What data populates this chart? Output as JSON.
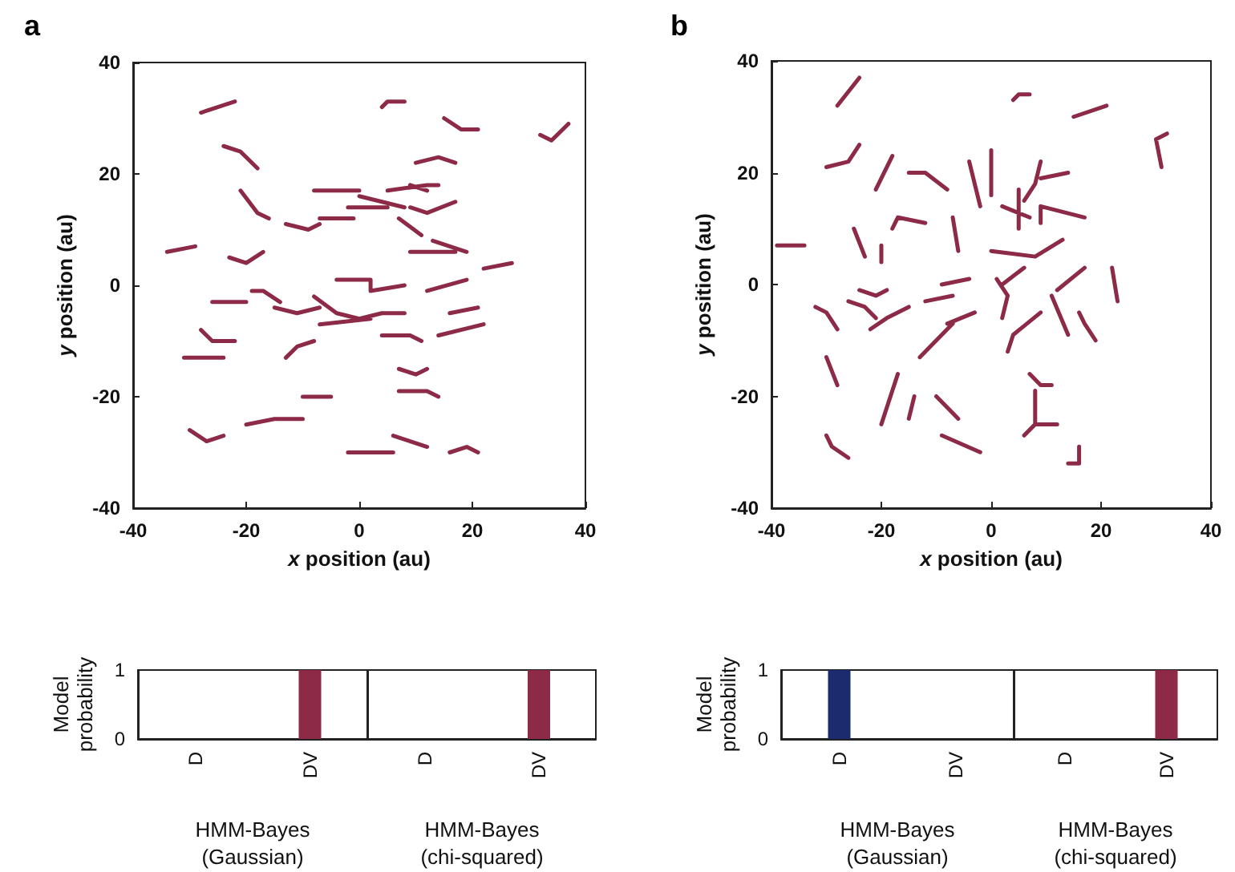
{
  "chart_data": [
    {
      "type": "line",
      "title": "a",
      "xlabel": "x position (au)",
      "ylabel": "y position (au)",
      "xlim": [
        -40,
        40
      ],
      "xticks": [
        -40,
        -20,
        0,
        20,
        40
      ],
      "ylim": [
        -40,
        40
      ],
      "yticks": [
        -40,
        -20,
        0,
        20,
        40
      ],
      "marker": "none",
      "line_style": "solid",
      "series": [
        {
          "color": "#8c2a48",
          "x": [
            -28,
            -22,
            null,
            4,
            5,
            8,
            null,
            15,
            18,
            21,
            null,
            32,
            34,
            37,
            null,
            -24,
            -21,
            -18,
            null,
            10,
            14,
            17,
            null,
            -8,
            -4,
            0,
            null,
            5,
            12,
            14,
            null,
            9,
            12,
            null,
            -2,
            5,
            null,
            0,
            4,
            8,
            null,
            9,
            12,
            17,
            null,
            -21,
            -18,
            -16,
            null,
            -7,
            -1,
            null,
            -13,
            -9,
            -7,
            null,
            7,
            11,
            null,
            -34,
            -29,
            null,
            -23,
            -20,
            -17,
            null,
            9,
            17,
            null,
            13,
            19,
            null,
            22,
            27,
            null,
            -4,
            2,
            2,
            8,
            null,
            12,
            19,
            null,
            -19,
            -17,
            -14,
            null,
            -26,
            -23,
            -20,
            null,
            -15,
            -11,
            -7,
            null,
            -8,
            -4,
            0,
            4,
            8,
            null,
            -7,
            2,
            null,
            16,
            21,
            null,
            14,
            22,
            null,
            4,
            9,
            11,
            null,
            -28,
            -26,
            -22,
            null,
            -31,
            -24,
            null,
            7,
            10,
            12,
            null,
            -10,
            -5,
            null,
            7,
            12,
            14,
            null,
            -20,
            -15,
            -10,
            null,
            -30,
            -27,
            -24,
            null,
            6,
            9,
            12,
            null,
            -2,
            6,
            null,
            16,
            19,
            21
          ],
          "values": [
            31,
            33,
            null,
            32,
            33,
            33,
            null,
            30,
            28,
            28,
            null,
            27,
            26,
            29,
            null,
            25,
            24,
            21,
            null,
            22,
            23,
            22,
            null,
            17,
            17,
            17,
            null,
            17,
            18,
            18,
            null,
            18,
            17,
            null,
            14,
            14,
            null,
            16,
            15,
            14,
            null,
            14,
            13,
            15,
            null,
            17,
            13,
            12,
            null,
            12,
            12,
            null,
            11,
            10,
            11,
            null,
            12,
            9,
            null,
            6,
            7,
            null,
            5,
            4,
            6,
            null,
            6,
            6,
            null,
            8,
            6,
            null,
            3,
            4,
            null,
            1,
            1,
            -1,
            0,
            null,
            -1,
            1,
            null,
            -1,
            -1,
            -3,
            null,
            -3,
            -3,
            -3,
            null,
            -4,
            -5,
            -4,
            null,
            -2,
            -5,
            -6,
            -5,
            -5,
            null,
            -7,
            -6,
            null,
            -5,
            -4,
            null,
            -9,
            -7,
            null,
            -9,
            -9,
            -10,
            null,
            -8,
            -10,
            -10,
            null,
            -13,
            -13,
            null,
            -15,
            -16,
            -15,
            null,
            -20,
            -20,
            null,
            -19,
            -19,
            -20,
            null,
            -25,
            -24,
            -24,
            null,
            -26,
            -28,
            -27,
            null,
            -27,
            -28,
            -29,
            null,
            -30,
            -30,
            null,
            -30,
            -29,
            -30
          ]
        },
        {
          "color": "#8c2a48",
          "x": [
            -13,
            -11,
            -8
          ],
          "values": [
            -13,
            -11,
            -10
          ]
        }
      ]
    },
    {
      "type": "bar",
      "categories": [
        "D",
        "DV"
      ],
      "values": [
        0,
        1
      ],
      "colors": [
        "#8c2a48",
        "#8c2a48"
      ],
      "ylabel": "Model\nprobability",
      "xlabel": "HMM-Bayes\n(Gaussian)",
      "ylim": [
        0,
        1
      ],
      "yticks": [
        0,
        1
      ]
    },
    {
      "type": "bar",
      "categories": [
        "D",
        "DV"
      ],
      "values": [
        0,
        1
      ],
      "colors": [
        "#8c2a48",
        "#8c2a48"
      ],
      "xlabel": "HMM-Bayes\n(chi-squared)",
      "ylim": [
        0,
        1
      ],
      "yticks": [
        0,
        1
      ],
      "tick_labels": "x"
    },
    {
      "type": "line",
      "title": "b",
      "xlabel": "x position (au)",
      "ylabel": "y position (au)",
      "xlim": [
        -40,
        40
      ],
      "xticks": [
        -40,
        -20,
        0,
        20,
        40
      ],
      "ylim": [
        -40,
        40
      ],
      "yticks": [
        -40,
        -20,
        0,
        20,
        40
      ],
      "marker": "none",
      "line_style": "solid",
      "series": [
        {
          "color": "#8c2a48",
          "x": [
            -28,
            -24,
            null,
            15,
            21,
            null,
            32,
            30,
            31,
            null,
            -30,
            -26,
            -24,
            null,
            -21,
            -18,
            null,
            -15,
            -12,
            -8,
            null,
            -4,
            -2,
            null,
            0,
            0,
            null,
            2,
            7,
            null,
            5,
            5,
            null,
            6,
            8,
            9,
            null,
            9,
            14,
            null,
            9,
            9,
            13,
            17,
            null,
            -18,
            -17,
            -12,
            null,
            -7,
            -6,
            null,
            -39,
            -34,
            null,
            -25,
            -23,
            null,
            -20,
            -20,
            null,
            0,
            8,
            13,
            null,
            -24,
            -21,
            -19,
            null,
            -9,
            -4,
            null,
            1,
            3,
            2,
            null,
            2,
            6,
            null,
            12,
            17,
            null,
            22,
            23,
            null,
            -32,
            -30,
            -28,
            null,
            -26,
            -23,
            -21,
            null,
            -22,
            -19,
            -15,
            null,
            -12,
            -7,
            null,
            -8,
            -3,
            null,
            -13,
            -9,
            -7,
            null,
            3,
            4,
            9,
            null,
            11,
            14,
            null,
            -30,
            -28,
            null,
            -20,
            -18,
            -17,
            null,
            -15,
            -14,
            null,
            -10,
            -6,
            null,
            7,
            9,
            11,
            null,
            8,
            8,
            6,
            null,
            8,
            12,
            null,
            -30,
            -29,
            -26,
            null,
            -9,
            -2,
            null,
            14,
            16,
            16
          ],
          "values": [
            32,
            37,
            null,
            30,
            32,
            null,
            27,
            26,
            21,
            null,
            21,
            22,
            25,
            null,
            17,
            23,
            null,
            20,
            20,
            17,
            null,
            22,
            14,
            null,
            24,
            16,
            null,
            14,
            12,
            null,
            17,
            10,
            null,
            15,
            18,
            22,
            null,
            19,
            20,
            null,
            11,
            14,
            13,
            12,
            null,
            10,
            12,
            11,
            null,
            12,
            6,
            null,
            7,
            7,
            null,
            10,
            5,
            null,
            7,
            4,
            null,
            6,
            5,
            8,
            null,
            -1,
            -2,
            -1,
            null,
            0,
            1,
            null,
            1,
            -2,
            -6,
            null,
            0,
            3,
            null,
            -1,
            3,
            null,
            3,
            -3,
            null,
            -4,
            -5,
            -8,
            null,
            -3,
            -4,
            -6,
            null,
            -8,
            -6,
            -4,
            null,
            -3,
            -2,
            null,
            -7,
            -5,
            null,
            -13,
            -9,
            -7,
            null,
            -12,
            -9,
            -5,
            null,
            -2,
            -9,
            null,
            -13,
            -18,
            null,
            -25,
            -19,
            -16,
            null,
            -24,
            -20,
            null,
            -20,
            -24,
            null,
            -16,
            -18,
            -18,
            null,
            -19,
            -25,
            -27,
            null,
            -25,
            -25,
            null,
            -27,
            -29,
            -31,
            null,
            -27,
            -30,
            null,
            -32,
            -32,
            -29
          ]
        },
        {
          "color": "#8c2a48",
          "x": [
            4,
            5,
            7,
            null,
            16,
            17,
            19
          ],
          "values": [
            33,
            34,
            34,
            null,
            -5,
            -7,
            -10
          ]
        }
      ]
    },
    {
      "type": "bar",
      "categories": [
        "D",
        "DV"
      ],
      "values": [
        1,
        0
      ],
      "colors": [
        "#1c2a6e",
        "#8c2a48"
      ],
      "ylabel": "Model\nprobability",
      "xlabel": "HMM-Bayes\n(Gaussian)",
      "ylim": [
        0,
        1
      ],
      "yticks": [
        0,
        1
      ]
    },
    {
      "type": "bar",
      "categories": [
        "D",
        "DV"
      ],
      "values": [
        0,
        1
      ],
      "colors": [
        "#8c2a48",
        "#8c2a48"
      ],
      "xlabel": "HMM-Bayes\n(chi-squared)",
      "ylim": [
        0,
        1
      ],
      "yticks": [
        0,
        1
      ],
      "tick_labels": "x"
    }
  ]
}
